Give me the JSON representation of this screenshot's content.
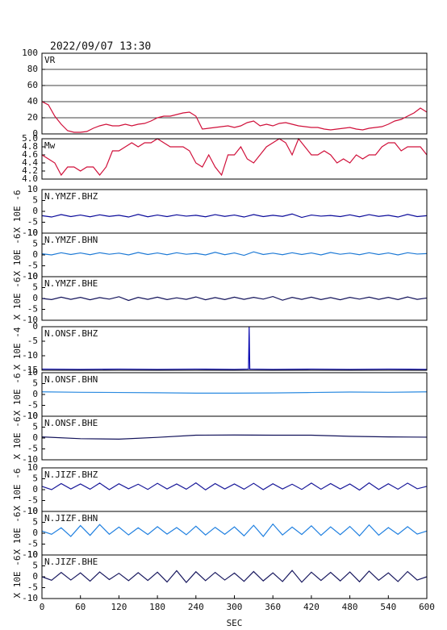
{
  "chart_data": [
    {
      "type": "line",
      "title": "2022/09/07 13:30",
      "label": "VR",
      "color": "#d0103a",
      "grid": true,
      "xlim": [
        0,
        600
      ],
      "ylim": [
        0,
        100
      ],
      "yticks": [
        0,
        20,
        40,
        60,
        80,
        100
      ],
      "x": [
        0,
        10,
        20,
        30,
        40,
        50,
        60,
        70,
        80,
        90,
        100,
        110,
        120,
        130,
        140,
        150,
        160,
        170,
        180,
        190,
        200,
        210,
        220,
        230,
        240,
        250,
        260,
        270,
        280,
        290,
        300,
        310,
        320,
        330,
        340,
        350,
        360,
        370,
        380,
        390,
        400,
        410,
        420,
        430,
        440,
        450,
        460,
        470,
        480,
        490,
        500,
        510,
        520,
        530,
        540,
        550,
        560,
        570,
        580,
        590,
        600
      ],
      "values": [
        40,
        36,
        22,
        12,
        4,
        2,
        2,
        3,
        7,
        10,
        12,
        10,
        10,
        12,
        10,
        12,
        13,
        16,
        20,
        22,
        22,
        24,
        26,
        27,
        22,
        6,
        7,
        8,
        9,
        10,
        8,
        10,
        14,
        16,
        10,
        12,
        10,
        13,
        14,
        12,
        10,
        9,
        8,
        8,
        6,
        5,
        6,
        7,
        8,
        6,
        5,
        7,
        8,
        9,
        12,
        16,
        18,
        22,
        26,
        32,
        27
      ]
    },
    {
      "type": "line",
      "label": "Mw",
      "color": "#d0103a",
      "grid": false,
      "xlim": [
        0,
        600
      ],
      "ylim": [
        4,
        5
      ],
      "yticks": [
        {
          "value": 4,
          "label": "4.0"
        },
        4.2,
        4.4,
        4.6,
        4.8,
        {
          "value": 5,
          "label": "5.0"
        }
      ],
      "x": [
        0,
        10,
        20,
        30,
        40,
        50,
        60,
        70,
        80,
        90,
        100,
        110,
        120,
        130,
        140,
        150,
        160,
        170,
        180,
        190,
        200,
        210,
        220,
        230,
        240,
        250,
        260,
        270,
        280,
        290,
        300,
        310,
        320,
        330,
        340,
        350,
        360,
        370,
        380,
        390,
        400,
        410,
        420,
        430,
        440,
        450,
        460,
        470,
        480,
        490,
        500,
        510,
        520,
        530,
        540,
        550,
        560,
        570,
        580,
        590,
        600
      ],
      "values": [
        4.6,
        4.5,
        4.4,
        4.1,
        4.3,
        4.3,
        4.2,
        4.3,
        4.3,
        4.1,
        4.3,
        4.7,
        4.7,
        4.8,
        4.9,
        4.8,
        4.9,
        4.9,
        5.0,
        4.9,
        4.8,
        4.8,
        4.8,
        4.7,
        4.4,
        4.3,
        4.6,
        4.3,
        4.1,
        4.6,
        4.6,
        4.8,
        4.5,
        4.4,
        4.6,
        4.8,
        4.9,
        5.0,
        4.9,
        4.6,
        5.0,
        4.8,
        4.6,
        4.6,
        4.7,
        4.6,
        4.4,
        4.5,
        4.4,
        4.6,
        4.5,
        4.6,
        4.6,
        4.8,
        4.9,
        4.9,
        4.7,
        4.8,
        4.8,
        4.8,
        4.6
      ]
    },
    {
      "type": "line",
      "label": "N.YMZF.BHZ",
      "ylabel": "X 10E -6",
      "color": "#0a0a9a",
      "grid": false,
      "xlim": [
        0,
        600
      ],
      "ylim": [
        -10,
        10
      ],
      "yticks": [
        10,
        5,
        0,
        -5,
        -10
      ],
      "x": [
        0,
        15,
        30,
        45,
        60,
        75,
        90,
        105,
        120,
        135,
        150,
        165,
        180,
        195,
        210,
        225,
        240,
        255,
        270,
        285,
        300,
        315,
        330,
        345,
        360,
        375,
        390,
        405,
        420,
        435,
        450,
        465,
        480,
        495,
        510,
        525,
        540,
        555,
        570,
        585,
        600
      ],
      "values": [
        -2,
        -2.6,
        -1.5,
        -2.4,
        -1.7,
        -2.5,
        -1.6,
        -2.3,
        -1.8,
        -2.6,
        -1.4,
        -2.5,
        -1.7,
        -2.4,
        -1.6,
        -2.2,
        -1.8,
        -2.5,
        -1.5,
        -2.3,
        -1.7,
        -2.6,
        -1.5,
        -2.4,
        -1.8,
        -2.3,
        -1.2,
        -2.8,
        -1.7,
        -2.2,
        -1.9,
        -2.4,
        -1.6,
        -2.5,
        -1.5,
        -2.3,
        -1.8,
        -2.6,
        -1.4,
        -2.4,
        -2
      ]
    },
    {
      "type": "line",
      "label": "N.YMZF.BHN",
      "ylabel": "X 10E -6",
      "color": "#1e7ad6",
      "grid": false,
      "xlim": [
        0,
        600
      ],
      "ylim": [
        -10,
        10
      ],
      "yticks": [
        10,
        5,
        0,
        -5,
        -10
      ],
      "x": [
        0,
        15,
        30,
        45,
        60,
        75,
        90,
        105,
        120,
        135,
        150,
        165,
        180,
        195,
        210,
        225,
        240,
        255,
        270,
        285,
        300,
        315,
        330,
        345,
        360,
        375,
        390,
        405,
        420,
        435,
        450,
        465,
        480,
        495,
        510,
        525,
        540,
        555,
        570,
        585,
        600
      ],
      "values": [
        0.5,
        0,
        1,
        0.2,
        0.9,
        0.1,
        1,
        0.3,
        0.8,
        0,
        1.1,
        0.2,
        0.9,
        0.1,
        1,
        0.3,
        0.7,
        0,
        1.2,
        0.1,
        0.9,
        -0.2,
        1.4,
        0.2,
        0.8,
        0.1,
        1,
        0.2,
        0.9,
        0,
        1.1,
        0.3,
        0.8,
        0.1,
        1,
        0.2,
        0.9,
        0,
        1,
        0.4,
        0.6
      ]
    },
    {
      "type": "line",
      "label": "N.YMZF.BHE",
      "ylabel": "X 10E -6",
      "color": "#12125a",
      "grid": false,
      "xlim": [
        0,
        600
      ],
      "ylim": [
        -10,
        10
      ],
      "yticks": [
        10,
        5,
        0,
        -5,
        -10
      ],
      "x": [
        0,
        15,
        30,
        45,
        60,
        75,
        90,
        105,
        120,
        135,
        150,
        165,
        180,
        195,
        210,
        225,
        240,
        255,
        270,
        285,
        300,
        315,
        330,
        345,
        360,
        375,
        390,
        405,
        420,
        435,
        450,
        465,
        480,
        495,
        510,
        525,
        540,
        555,
        570,
        585,
        600
      ],
      "values": [
        0,
        -0.5,
        0.6,
        -0.4,
        0.5,
        -0.6,
        0.4,
        -0.3,
        0.8,
        -0.9,
        0.5,
        -0.4,
        0.6,
        -0.5,
        0.3,
        -0.4,
        0.7,
        -0.6,
        0.4,
        -0.5,
        0.6,
        -0.4,
        0.5,
        -0.3,
        0.9,
        -0.8,
        0.5,
        -0.4,
        0.6,
        -0.5,
        0.4,
        -0.6,
        0.5,
        -0.3,
        0.6,
        -0.4,
        0.5,
        -0.5,
        0.7,
        -0.4,
        0.2
      ]
    },
    {
      "type": "line",
      "label": "N.ONSF.BHZ",
      "ylabel": "X 10E -4",
      "color": "#0a0ab0",
      "grid": false,
      "xlim": [
        0,
        600
      ],
      "ylim": [
        -15,
        0
      ],
      "yticks": [
        0,
        -5,
        -10,
        -15
      ],
      "x": [
        0,
        60,
        120,
        180,
        240,
        300,
        322,
        323,
        324,
        360,
        420,
        480,
        540,
        600
      ],
      "values": [
        -14.6,
        -14.7,
        -14.6,
        -14.7,
        -14.6,
        -14.7,
        -14.6,
        0,
        -14.6,
        -14.7,
        -14.6,
        -14.7,
        -14.6,
        -14.7
      ]
    },
    {
      "type": "line",
      "label": "N.ONSF.BHN",
      "ylabel": "X 10E -6",
      "color": "#2a8ae0",
      "grid": false,
      "xlim": [
        0,
        600
      ],
      "ylim": [
        -10,
        10
      ],
      "yticks": [
        10,
        5,
        0,
        -5,
        -10
      ],
      "x": [
        0,
        60,
        120,
        180,
        240,
        300,
        360,
        420,
        480,
        540,
        600
      ],
      "values": [
        1.2,
        1,
        0.9,
        0.8,
        0.6,
        0.6,
        0.7,
        0.9,
        1.1,
        1,
        1.2
      ]
    },
    {
      "type": "line",
      "label": "N.ONSF.BHE",
      "ylabel": "X 10E -6",
      "color": "#12125a",
      "grid": false,
      "xlim": [
        0,
        600
      ],
      "ylim": [
        -10,
        10
      ],
      "yticks": [
        10,
        5,
        0,
        -5,
        -10
      ],
      "x": [
        0,
        60,
        120,
        180,
        240,
        300,
        360,
        420,
        480,
        540,
        600
      ],
      "values": [
        0.5,
        -0.3,
        -0.5,
        0.3,
        1.3,
        1.4,
        1.3,
        1.3,
        0.8,
        0.5,
        0.4
      ]
    },
    {
      "type": "line",
      "label": "N.JIZF.BHZ",
      "ylabel": "X 10E -6",
      "color": "#1a1a9a",
      "grid": false,
      "xlim": [
        0,
        600
      ],
      "ylim": [
        -10,
        10
      ],
      "yticks": [
        10,
        5,
        0,
        -5,
        -10
      ],
      "x": [
        0,
        15,
        30,
        45,
        60,
        75,
        90,
        105,
        120,
        135,
        150,
        165,
        180,
        195,
        210,
        225,
        240,
        255,
        270,
        285,
        300,
        315,
        330,
        345,
        360,
        375,
        390,
        405,
        420,
        435,
        450,
        465,
        480,
        495,
        510,
        525,
        540,
        555,
        570,
        585,
        600
      ],
      "values": [
        1.5,
        0,
        2.8,
        0.3,
        2.6,
        0.2,
        3,
        0,
        2.7,
        0.4,
        2.5,
        0.1,
        2.9,
        0.3,
        2.6,
        0.2,
        3.1,
        -0.1,
        2.8,
        0.3,
        2.6,
        0.2,
        2.9,
        0,
        2.7,
        0.3,
        2.5,
        0.1,
        3,
        0.2,
        2.8,
        0.3,
        2.6,
        -0.2,
        3.1,
        0.1,
        2.7,
        0.2,
        3,
        0.4,
        1.5
      ]
    },
    {
      "type": "line",
      "label": "N.JIZF.BHN",
      "ylabel": "X 10E -6",
      "color": "#2080e0",
      "grid": false,
      "xlim": [
        0,
        600
      ],
      "ylim": [
        -10,
        10
      ],
      "yticks": [
        10,
        5,
        0,
        -5,
        -10
      ],
      "x": [
        0,
        15,
        30,
        45,
        60,
        75,
        90,
        105,
        120,
        135,
        150,
        165,
        180,
        195,
        210,
        225,
        240,
        255,
        270,
        285,
        300,
        315,
        330,
        345,
        360,
        375,
        390,
        405,
        420,
        435,
        450,
        465,
        480,
        495,
        510,
        525,
        540,
        555,
        570,
        585,
        600
      ],
      "values": [
        1,
        -0.5,
        2.5,
        -1.5,
        3.5,
        -1,
        4,
        -0.5,
        2.8,
        -0.8,
        2.5,
        -0.6,
        3,
        -0.4,
        2.6,
        -0.7,
        3.2,
        -0.8,
        2.7,
        -0.5,
        2.9,
        -1.2,
        3.6,
        -1.5,
        4.2,
        -0.8,
        2.8,
        -0.6,
        3.4,
        -1,
        2.9,
        -0.7,
        3.1,
        -1.2,
        3.8,
        -0.9,
        2.6,
        -0.5,
        3,
        -0.4,
        1
      ]
    },
    {
      "type": "line",
      "label": "N.JIZF.BHE",
      "ylabel": "X 10E -6",
      "color": "#1a1a60",
      "grid": false,
      "xlim": [
        0,
        600
      ],
      "ylim": [
        -10,
        10
      ],
      "yticks": [
        10,
        5,
        0,
        -5,
        -10
      ],
      "xlabel": "SEC",
      "xticks": [
        0,
        60,
        120,
        180,
        240,
        300,
        360,
        420,
        480,
        540,
        600
      ],
      "x": [
        0,
        15,
        30,
        45,
        60,
        75,
        90,
        105,
        120,
        135,
        150,
        165,
        180,
        195,
        210,
        225,
        240,
        255,
        270,
        285,
        300,
        315,
        330,
        345,
        360,
        375,
        390,
        405,
        420,
        435,
        450,
        465,
        480,
        495,
        510,
        525,
        540,
        555,
        570,
        585,
        600
      ],
      "values": [
        0,
        -1.6,
        2,
        -1.5,
        1.8,
        -2,
        2.2,
        -1.3,
        1.6,
        -1.8,
        1.9,
        -1.7,
        2.1,
        -2.4,
        2.8,
        -2.6,
        2.3,
        -1.8,
        2,
        -1.5,
        1.7,
        -2.1,
        2.4,
        -1.9,
        1.8,
        -2.2,
        2.9,
        -2.5,
        2.1,
        -1.7,
        2,
        -1.9,
        2.2,
        -2.3,
        2.6,
        -1.6,
        1.8,
        -2.2,
        2.4,
        -1.5,
        0
      ]
    }
  ]
}
